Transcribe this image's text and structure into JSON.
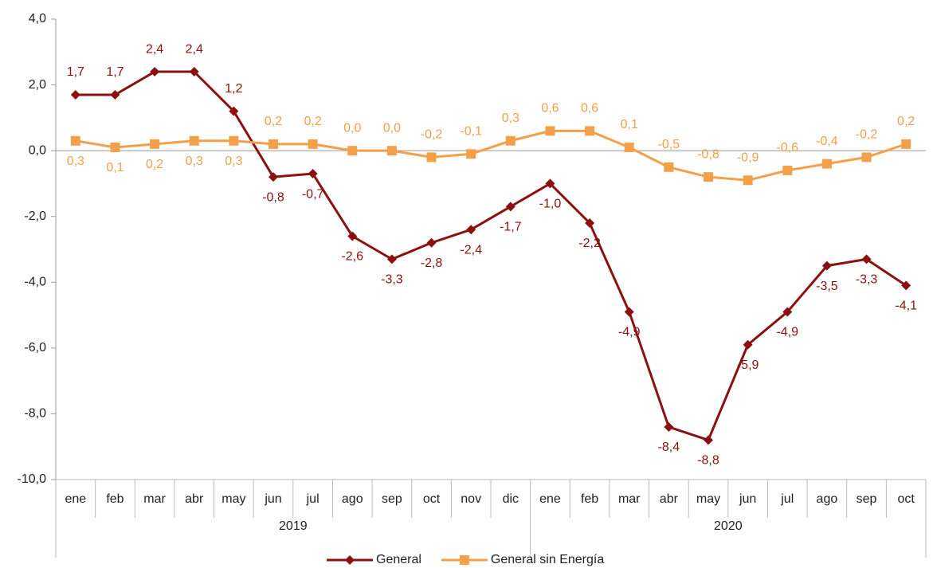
{
  "chart_data": {
    "type": "line",
    "category_groups": [
      {
        "name": "2019",
        "categories": [
          "ene",
          "feb",
          "mar",
          "abr",
          "may",
          "jun",
          "jul",
          "ago",
          "sep",
          "oct",
          "nov",
          "dic"
        ]
      },
      {
        "name": "2020",
        "categories": [
          "ene",
          "feb",
          "mar",
          "abr",
          "may",
          "jun",
          "jul",
          "ago",
          "sep",
          "oct"
        ]
      }
    ],
    "series": [
      {
        "name": "General",
        "color": "#8b1111",
        "marker": "diamond",
        "values": [
          1.7,
          1.7,
          2.4,
          2.4,
          1.2,
          -0.8,
          -0.7,
          -2.6,
          -3.3,
          -2.8,
          -2.4,
          -1.7,
          -1.0,
          -2.2,
          -4.9,
          -8.4,
          -8.8,
          -5.9,
          -4.9,
          -3.5,
          -3.3,
          -4.1
        ],
        "value_labels": [
          "1,7",
          "1,7",
          "2,4",
          "2,4",
          "1,2",
          "-0,8",
          "-0,7",
          "-2,6",
          "-3,3",
          "-2,8",
          "-2,4",
          "-1,7",
          "-1,0",
          "-2,2",
          "-4,9",
          "-8,4",
          "-8,8",
          "-5,9",
          "-4,9",
          "-3,5",
          "-3,3",
          "-4,1"
        ]
      },
      {
        "name": "General sin Energía",
        "color": "#f4a04a",
        "marker": "square",
        "values": [
          0.3,
          0.1,
          0.2,
          0.3,
          0.3,
          0.2,
          0.2,
          0.0,
          0.0,
          -0.2,
          -0.1,
          0.3,
          0.6,
          0.6,
          0.1,
          -0.5,
          -0.8,
          -0.9,
          -0.6,
          -0.4,
          -0.2,
          0.2
        ],
        "value_labels": [
          "0,3",
          "0,1",
          "0,2",
          "0,3",
          "0,3",
          "0,2",
          "0,2",
          "0,0",
          "0,0",
          "-0,2",
          "-0,1",
          "0,3",
          "0,6",
          "0,6",
          "0,1",
          "-0,5",
          "-0,8",
          "-0,9",
          "-0,6",
          "-0,4",
          "-0,2",
          "0,2"
        ]
      }
    ],
    "ylim": [
      -10,
      4
    ],
    "yticks": [
      {
        "value": -10,
        "label": "-10,0"
      },
      {
        "value": -8,
        "label": "-8,0"
      },
      {
        "value": -6,
        "label": "-6,0"
      },
      {
        "value": -4,
        "label": "-4,0"
      },
      {
        "value": -2,
        "label": "-2,0"
      },
      {
        "value": 0,
        "label": "0,0"
      },
      {
        "value": 2,
        "label": "2,0"
      },
      {
        "value": 4,
        "label": "4,0"
      }
    ],
    "legend": "bottom"
  }
}
